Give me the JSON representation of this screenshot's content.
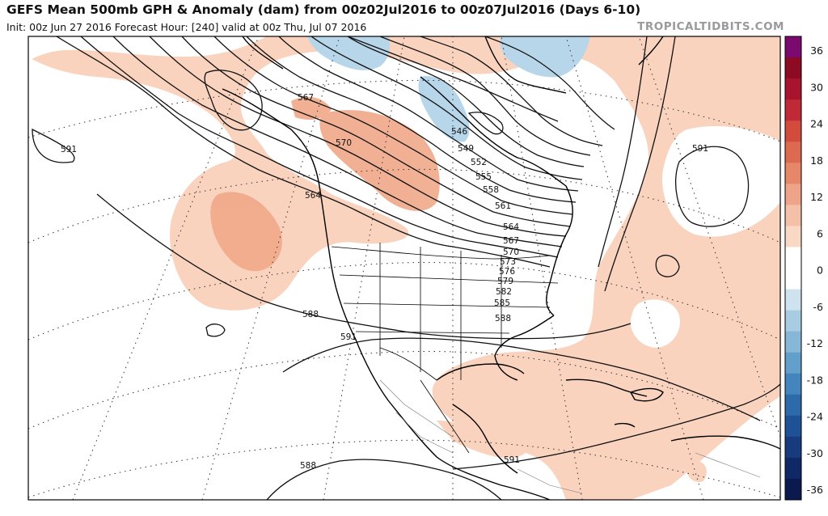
{
  "header": {
    "title": "GEFS Mean 500mb GPH & Anomaly (dam) from 00z02Jul2016 to 00z07Jul2016 (Days 6-10)",
    "subtitle": "Init: 00z Jun 27 2016   Forecast Hour: [240]   valid at 00z Thu, Jul 07 2016",
    "brand": "TROPICALTIDBITS.COM"
  },
  "colorbar": {
    "labels": [
      "36",
      "30",
      "24",
      "18",
      "12",
      "6",
      "0",
      "-6",
      "-12",
      "-18",
      "-24",
      "-30",
      "-36"
    ],
    "colors": [
      "#7a0a70",
      "#8c0a22",
      "#a8142e",
      "#c02a36",
      "#d24b3c",
      "#dc6a50",
      "#e6876a",
      "#eea488",
      "#f5c0a8",
      "#fad8c6",
      "#ffffff",
      "#ffffff",
      "#cfe3ef",
      "#a8cde2",
      "#86b7d6",
      "#629fcb",
      "#4585bd",
      "#2d6aaa",
      "#1e5196",
      "#183b7e",
      "#112866",
      "#0b1a4e"
    ]
  },
  "contour_labels": [
    "591",
    "567",
    "570",
    "564",
    "546",
    "549",
    "552",
    "555",
    "558",
    "561",
    "564",
    "567",
    "570",
    "573",
    "576",
    "579",
    "582",
    "585",
    "588",
    "588",
    "591",
    "591",
    "591",
    "588"
  ],
  "legend_colors": {
    "positive_anomaly": "#fad3bf",
    "strong_positive_anomaly": "#f0a888",
    "negative_anomaly": "#b8d6ea",
    "contour": "#111111",
    "coast": "#000000",
    "graticule": "#333333"
  }
}
